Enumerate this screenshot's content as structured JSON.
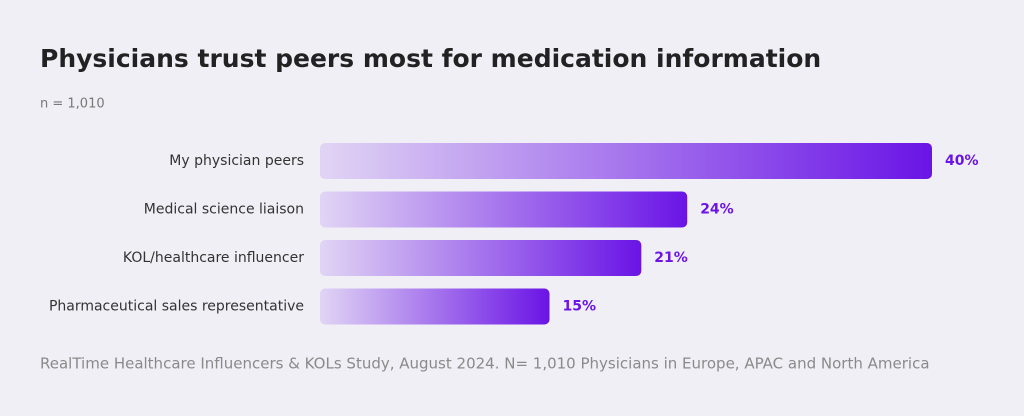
{
  "chart_data": {
    "type": "bar",
    "orientation": "horizontal",
    "title": "Physicians trust peers most for medication information",
    "subtitle": "n = 1,010",
    "categories": [
      "My physician peers",
      "Medical science liaison",
      "KOL/healthcare influencer",
      "Pharmaceutical sales representative"
    ],
    "values": [
      40,
      24,
      21,
      15
    ],
    "value_labels": [
      "40%",
      "24%",
      "21%",
      "15%"
    ],
    "color": "#6a14e6",
    "source": "RealTime Healthcare Influencers & KOLs Study, August 2024. N= 1,010 Physicians in Europe, APAC and North America"
  }
}
